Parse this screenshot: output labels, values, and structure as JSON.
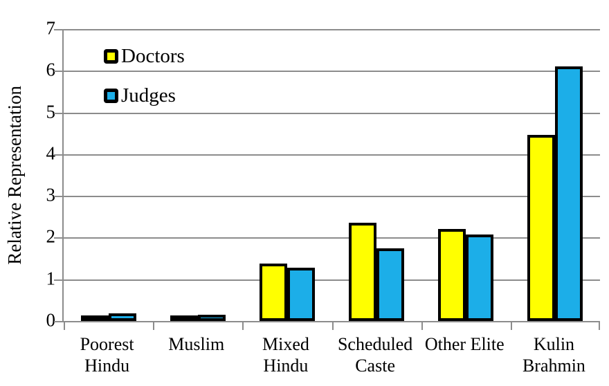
{
  "chart_data": {
    "type": "bar",
    "title": "",
    "xlabel": "",
    "ylabel": "Relative Representation",
    "ylim": [
      0,
      7
    ],
    "yticks": [
      0,
      1,
      2,
      3,
      4,
      5,
      6,
      7
    ],
    "grid": "horizontal gridlines at each integer",
    "legend_position": "top-left inside plot",
    "categories": [
      "Poorest Hindu",
      "Muslim",
      "Mixed Hindu",
      "Scheduled Caste",
      "Other Elite",
      "Kulin Brahmin"
    ],
    "category_label_lines": [
      [
        "Poorest",
        "Hindu"
      ],
      [
        "Muslim"
      ],
      [
        "Mixed",
        "Hindu"
      ],
      [
        "Scheduled",
        "Caste"
      ],
      [
        "Other Elite"
      ],
      [
        "Kulin",
        "Brahmin"
      ]
    ],
    "series": [
      {
        "name": "Doctors",
        "color": "#FFFF00",
        "values": [
          0.08,
          0.11,
          1.38,
          2.36,
          2.21,
          4.46
        ]
      },
      {
        "name": "Judges",
        "color": "#1CAEE8",
        "values": [
          0.19,
          0.15,
          1.27,
          1.75,
          2.07,
          6.1
        ]
      }
    ],
    "colors": {
      "bar_border": "#000000",
      "gridline": "#8C8C8C",
      "axis": "#8C8C8C",
      "text": "#000000",
      "background": "#FFFFFF"
    }
  }
}
